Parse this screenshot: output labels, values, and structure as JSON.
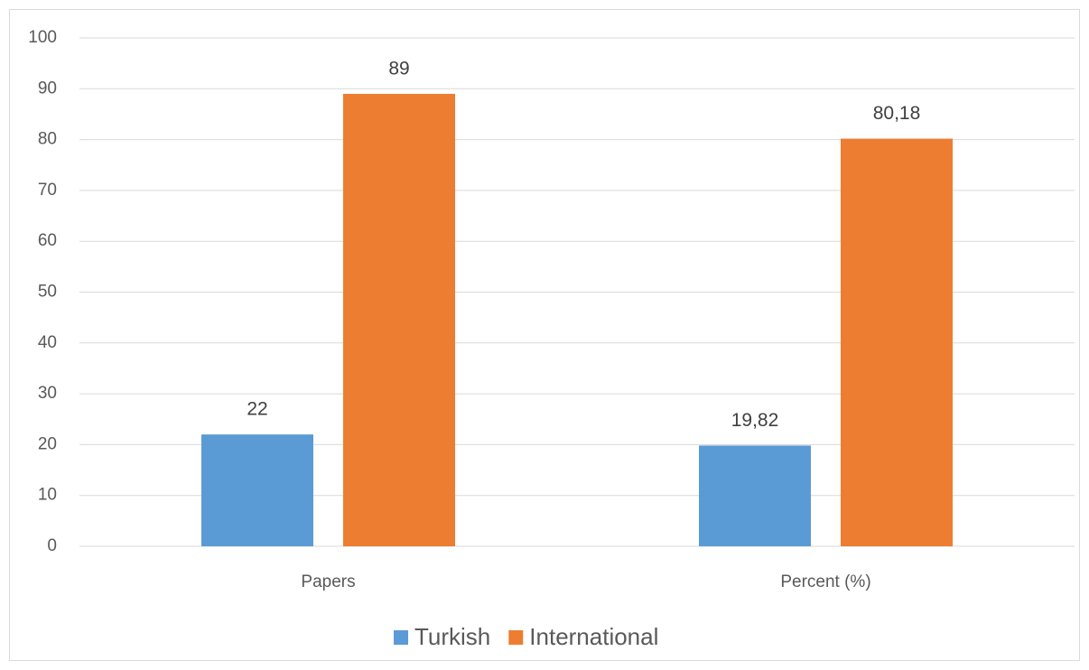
{
  "chart_data": {
    "type": "bar",
    "categories": [
      "Papers",
      "Percent (%)"
    ],
    "series": [
      {
        "name": "Turkish",
        "color": "#5b9bd5",
        "values": [
          22,
          19.82
        ],
        "value_labels": [
          "22",
          "19,82"
        ]
      },
      {
        "name": "International",
        "color": "#ed7d31",
        "values": [
          89,
          80.18
        ],
        "value_labels": [
          "89",
          "80,18"
        ]
      }
    ],
    "ylim": [
      0,
      100
    ],
    "yticks": [
      0,
      10,
      20,
      30,
      40,
      50,
      60,
      70,
      80,
      90,
      100
    ],
    "grid": true,
    "legend": "bottom"
  }
}
